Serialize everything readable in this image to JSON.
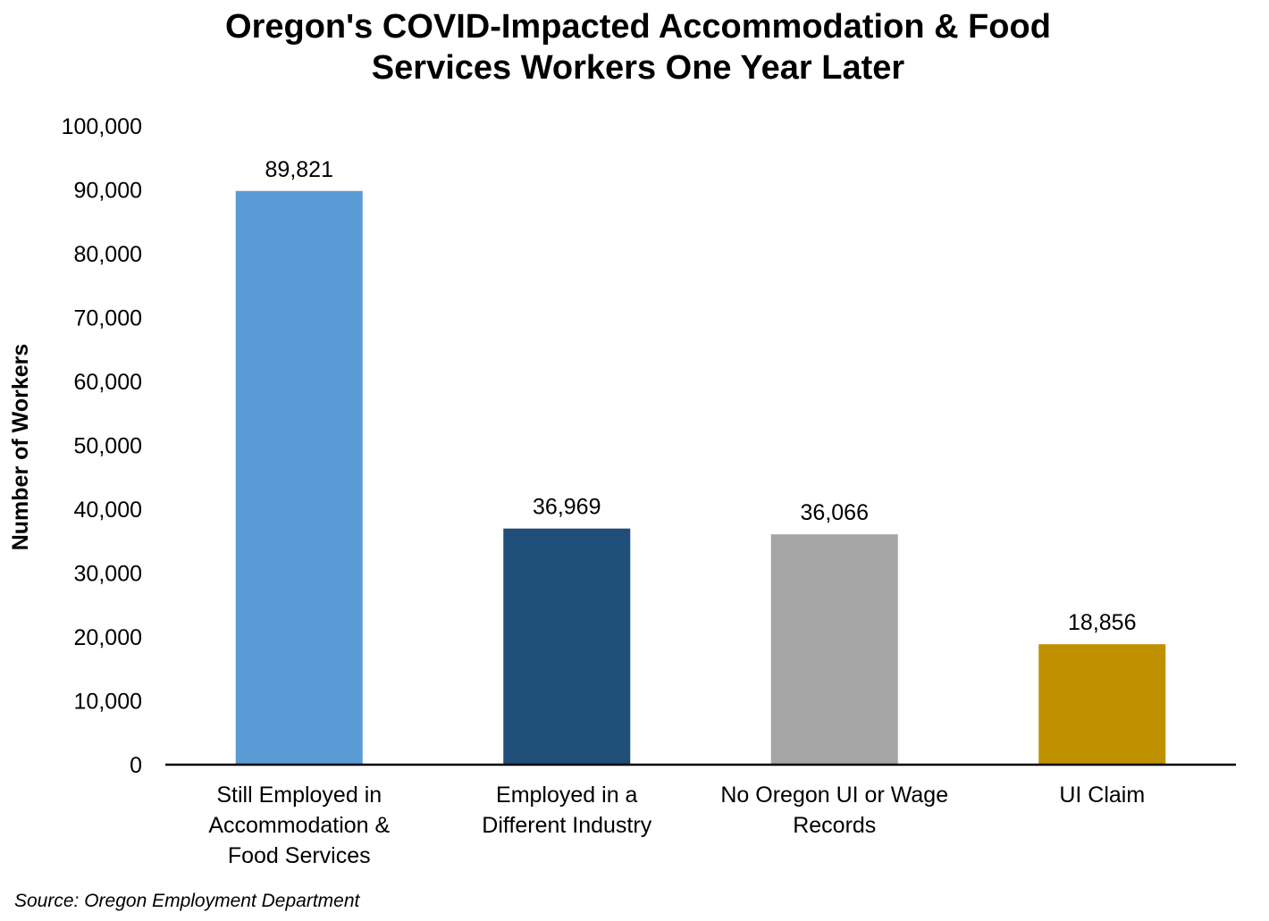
{
  "chart_data": {
    "type": "bar",
    "title": [
      "Oregon's COVID-Impacted Accommodation & Food",
      "Services Workers One Year Later"
    ],
    "ylabel": "Number of Workers",
    "xlabel": "",
    "ylim": [
      0,
      100000
    ],
    "yticks": [
      0,
      10000,
      20000,
      30000,
      40000,
      50000,
      60000,
      70000,
      80000,
      90000,
      100000
    ],
    "ytick_labels": [
      "0",
      "10,000",
      "20,000",
      "30,000",
      "40,000",
      "50,000",
      "60,000",
      "70,000",
      "80,000",
      "90,000",
      "100,000"
    ],
    "grid": false,
    "legend": "none",
    "categories": [
      [
        "Still Employed in",
        "Accommodation &",
        "Food Services"
      ],
      [
        "Employed in a",
        "Different Industry"
      ],
      [
        "No Oregon UI or Wage",
        "Records"
      ],
      [
        "UI Claim"
      ]
    ],
    "values": [
      89821,
      36969,
      36066,
      18856
    ],
    "data_labels": [
      "89,821",
      "36,969",
      "36,066",
      "18,856"
    ],
    "colors": [
      "#5b9bd5",
      "#1f4e79",
      "#a6a6a6",
      "#bf9000"
    ],
    "source": "Source: Oregon Employment Department"
  }
}
